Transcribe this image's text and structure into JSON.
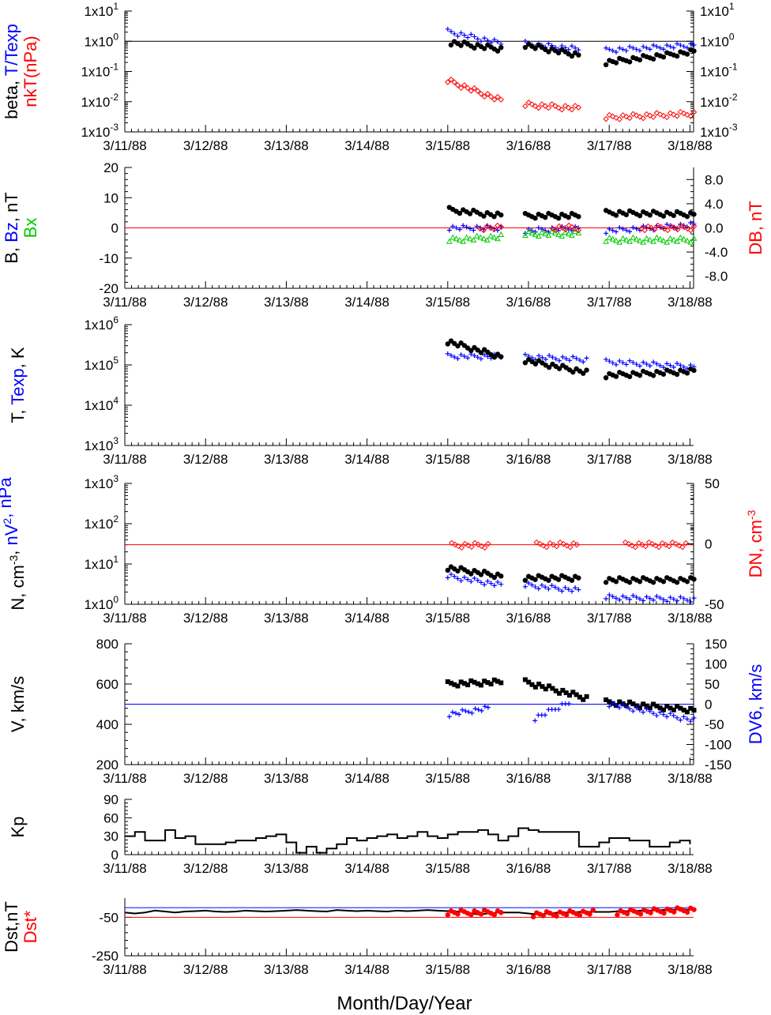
{
  "x_axis": {
    "tick_labels": [
      "3/11/88",
      "3/12/88",
      "3/13/88",
      "3/14/88",
      "3/15/88",
      "3/16/88",
      "3/17/88",
      "3/18/88"
    ],
    "title": "Month/Day/Year"
  },
  "colors": {
    "black": "#000000",
    "blue": "#0000ff",
    "red": "#ff0000",
    "green": "#00cc00"
  },
  "chart_data": [
    {
      "id": "beta",
      "type": "scatter",
      "scale": "log",
      "ylim": [
        0.001,
        10
      ],
      "left_ticks": [
        "1x10",
        "1x10",
        "1x10",
        "1x10",
        "1x10"
      ],
      "left_exps": [
        "1",
        "0",
        "-1",
        "-2",
        "-3"
      ],
      "right_ticks": [
        "1x10",
        "1x10",
        "1x10",
        "1x10",
        "1x10"
      ],
      "right_exps": [
        "1",
        "0",
        "-1",
        "-2",
        "-3"
      ],
      "ylabel_parts": [
        [
          {
            "t": "beta, ",
            "c": "black"
          },
          {
            "t": "T/Texp",
            "c": "blue"
          }
        ],
        [
          {
            "t": "nkT(nPa)",
            "c": "red"
          }
        ]
      ],
      "reference_lines": [
        {
          "y": 1,
          "color": "black"
        }
      ],
      "series": [
        {
          "marker": "plus",
          "color": "blue",
          "segments": [
            [
              4.0,
              4.66,
              2.1,
              0.85
            ],
            [
              4.96,
              5.62,
              0.85,
              0.55
            ],
            [
              5.96,
              7.05,
              0.5,
              0.75
            ]
          ]
        },
        {
          "marker": "dot",
          "color": "black",
          "segments": [
            [
              4.04,
              4.66,
              0.9,
              0.55
            ],
            [
              4.96,
              5.62,
              0.75,
              0.35
            ],
            [
              5.96,
              7.05,
              0.2,
              0.45
            ]
          ]
        },
        {
          "marker": "diamond",
          "color": "red",
          "segments": [
            [
              4.0,
              4.66,
              0.05,
              0.011
            ],
            [
              4.96,
              5.62,
              0.008,
              0.006
            ],
            [
              5.96,
              7.05,
              0.003,
              0.004
            ]
          ]
        }
      ]
    },
    {
      "id": "bfield",
      "type": "scatter",
      "scale": "linear",
      "ylim": [
        -20,
        20
      ],
      "left_ticks": [
        "20",
        "10",
        "0",
        "-10",
        "-20"
      ],
      "right_ticks": [
        "8.0",
        "4.0",
        "0.0",
        "-4.0",
        "-8.0"
      ],
      "right_values": [
        8,
        4,
        0,
        -4,
        -8
      ],
      "right_range": [
        -10,
        10
      ],
      "ylabel_parts": [
        [
          {
            "t": "B, ",
            "c": "black"
          },
          {
            "t": "Bz",
            "c": "blue"
          },
          {
            "t": ", nT",
            "c": "black"
          }
        ],
        [
          {
            "t": "Bx",
            "c": "green"
          }
        ]
      ],
      "right_label": "DB, nT",
      "reference_lines": [
        {
          "y": 0,
          "color": "red"
        }
      ],
      "series": [
        {
          "marker": "dot",
          "color": "black",
          "segments": [
            [
              4.02,
              4.66,
              6,
              4
            ],
            [
              4.96,
              5.62,
              4,
              4
            ],
            [
              5.96,
              7.05,
              5,
              4.5
            ]
          ]
        },
        {
          "marker": "plus",
          "color": "blue",
          "segments": [
            [
              4.02,
              4.66,
              0,
              0
            ],
            [
              4.96,
              5.62,
              -1,
              0
            ],
            [
              5.96,
              7.05,
              -1,
              1
            ]
          ]
        },
        {
          "marker": "tri",
          "color": "green",
          "segments": [
            [
              4.02,
              4.66,
              -4,
              -3
            ],
            [
              4.96,
              5.62,
              -2,
              -2
            ],
            [
              5.96,
              7.05,
              -4,
              -4
            ]
          ]
        },
        {
          "marker": "diamond",
          "color": "red",
          "segments": [
            [
              4.4,
              4.66,
              0,
              0
            ],
            [
              5.3,
              5.62,
              0,
              0
            ],
            [
              6.4,
              7.05,
              0,
              0
            ]
          ]
        }
      ]
    },
    {
      "id": "temperature",
      "type": "scatter",
      "scale": "log",
      "ylim": [
        1000,
        1000000
      ],
      "left_ticks": [
        "1x10",
        "1x10",
        "1x10",
        "1x10"
      ],
      "left_exps": [
        "6",
        "5",
        "4",
        "3"
      ],
      "ylabel_parts": [
        [
          {
            "t": "T, ",
            "c": "black"
          },
          {
            "t": "Texp",
            "c": "blue"
          },
          {
            "t": ", K",
            "c": "black"
          }
        ]
      ],
      "series": [
        {
          "marker": "plus",
          "color": "blue",
          "segments": [
            [
              4.0,
              4.66,
              165000,
              160000
            ],
            [
              4.96,
              5.72,
              160000,
              135000
            ],
            [
              5.96,
              7.05,
              120000,
              90000
            ]
          ]
        },
        {
          "marker": "dot",
          "color": "black",
          "segments": [
            [
              4.0,
              4.66,
              380000,
              160000
            ],
            [
              4.96,
              5.72,
              130000,
              65000
            ],
            [
              5.96,
              7.05,
              55000,
              70000
            ]
          ]
        }
      ]
    },
    {
      "id": "density",
      "type": "scatter",
      "scale": "log",
      "ylim": [
        1,
        1000
      ],
      "left_ticks": [
        "1x10",
        "1x10",
        "1x10",
        "1x10"
      ],
      "left_exps": [
        "3",
        "2",
        "1",
        "0"
      ],
      "right_ticks": [
        "50",
        "0",
        "-50"
      ],
      "right_values": [
        50,
        0,
        -50
      ],
      "right_range": [
        -50,
        50
      ],
      "ylabel_parts": [
        [
          {
            "t": "N, cm",
            "c": "black"
          },
          {
            "t": "-3",
            "c": "black",
            "sup": true
          },
          {
            "t": ", ",
            "c": "black"
          },
          {
            "t": "nV",
            "c": "blue"
          },
          {
            "t": "2",
            "c": "blue",
            "sup": true
          },
          {
            "t": ", nPa",
            "c": "blue"
          }
        ]
      ],
      "right_label": "DN, cm",
      "right_label_sup": "-3",
      "reference_lines": [
        {
          "y": 30,
          "color": "red"
        }
      ],
      "series": [
        {
          "marker": "diamond",
          "color": "red",
          "segments": [
            [
              4.05,
              4.5,
              29,
              29
            ],
            [
              5.1,
              5.6,
              30,
              30
            ],
            [
              6.2,
              6.95,
              30,
              30
            ]
          ]
        },
        {
          "marker": "dot",
          "color": "black",
          "segments": [
            [
              4.0,
              4.66,
              8,
              5
            ],
            [
              4.96,
              5.62,
              4.5,
              4.5
            ],
            [
              5.96,
              7.05,
              4,
              4
            ]
          ]
        },
        {
          "marker": "plus",
          "color": "blue",
          "segments": [
            [
              4.0,
              4.66,
              5,
              3
            ],
            [
              4.96,
              5.62,
              3,
              2.2
            ],
            [
              5.96,
              7.05,
              1.5,
              1.3
            ]
          ]
        }
      ]
    },
    {
      "id": "velocity",
      "type": "scatter",
      "scale": "linear",
      "ylim": [
        200,
        800
      ],
      "left_ticks": [
        "800",
        "600",
        "400",
        "200"
      ],
      "right_ticks": [
        "150",
        "100",
        "50",
        "0",
        "-50",
        "-100",
        "-150"
      ],
      "right_values": [
        150,
        100,
        50,
        0,
        -50,
        -100,
        -150
      ],
      "right_range": [
        -150,
        150
      ],
      "ylabel_parts": [
        [
          {
            "t": "V, km/s",
            "c": "black"
          }
        ]
      ],
      "right_label": "DV6, km/s",
      "reference_lines": [
        {
          "y": 500,
          "color": "blue"
        }
      ],
      "series": [
        {
          "marker": "square",
          "color": "black",
          "segments": [
            [
              4.0,
              4.66,
              600,
              610
            ],
            [
              4.96,
              5.72,
              610,
              530
            ],
            [
              5.96,
              7.05,
              510,
              470
            ]
          ]
        },
        {
          "marker": "plus",
          "color": "blue",
          "segments": [
            [
              4.02,
              4.5,
              450,
              480
            ],
            [
              5.08,
              5.5,
              430,
              510
            ],
            [
              6.0,
              7.05,
              500,
              420
            ]
          ]
        }
      ]
    },
    {
      "id": "kp",
      "type": "line",
      "scale": "linear",
      "ylim": [
        0,
        90
      ],
      "left_ticks": [
        "90",
        "60",
        "30",
        "0"
      ],
      "ylabel_parts": [
        [
          {
            "t": "Kp",
            "c": "black"
          }
        ]
      ],
      "series": [
        {
          "color": "black",
          "x": [
            0,
            0.125,
            0.25,
            0.375,
            0.5,
            0.625,
            0.75,
            0.875,
            1.0,
            1.125,
            1.25,
            1.375,
            1.5,
            1.625,
            1.75,
            1.875,
            2.0,
            2.125,
            2.25,
            2.375,
            2.5,
            2.625,
            2.75,
            2.875,
            3.0,
            3.125,
            3.25,
            3.375,
            3.5,
            3.625,
            3.75,
            3.875,
            4.0,
            4.125,
            4.25,
            4.375,
            4.5,
            4.625,
            4.75,
            4.875,
            5.0,
            5.125,
            5.25,
            5.375,
            5.5,
            5.625,
            5.75,
            5.875,
            6.0,
            6.125,
            6.25,
            6.375,
            6.5,
            6.625,
            6.75,
            6.875,
            7.0
          ],
          "y": [
            30,
            37,
            23,
            23,
            40,
            27,
            30,
            17,
            17,
            17,
            20,
            23,
            23,
            27,
            30,
            33,
            20,
            3,
            13,
            3,
            10,
            17,
            27,
            23,
            27,
            30,
            33,
            27,
            30,
            37,
            30,
            27,
            33,
            37,
            37,
            40,
            33,
            23,
            30,
            43,
            40,
            37,
            37,
            37,
            37,
            13,
            13,
            20,
            27,
            27,
            23,
            23,
            13,
            13,
            20,
            23,
            17
          ]
        }
      ]
    },
    {
      "id": "dst",
      "type": "line",
      "scale": "linear",
      "ylim": [
        -250,
        50
      ],
      "left_ticks": [
        "-50",
        "-250"
      ],
      "left_values": [
        -50,
        -250
      ],
      "ylabel_parts": [
        [
          {
            "t": "Dst,nT",
            "c": "black"
          }
        ],
        [
          {
            "t": "Dst*",
            "c": "red"
          }
        ]
      ],
      "reference_lines": [
        {
          "y": 0,
          "color": "blue"
        },
        {
          "y": -50,
          "color": "red"
        }
      ],
      "series": [
        {
          "color": "black",
          "x": [
            0,
            0.125,
            0.25,
            0.375,
            0.5,
            0.625,
            0.75,
            0.875,
            1.0,
            1.125,
            1.25,
            1.375,
            1.5,
            1.625,
            1.75,
            1.875,
            2.0,
            2.125,
            2.25,
            2.375,
            2.5,
            2.625,
            2.75,
            2.875,
            3.0,
            3.125,
            3.25,
            3.375,
            3.5,
            3.625,
            3.75,
            3.875,
            4.0,
            4.125,
            4.25,
            4.375,
            4.5,
            4.625,
            4.75,
            4.875,
            5.0,
            5.125,
            5.25,
            5.375,
            5.5,
            5.625,
            5.75,
            5.875,
            6.0,
            6.125,
            6.25,
            6.375,
            6.5,
            6.625,
            6.75,
            6.875,
            7.0
          ],
          "y": [
            -25,
            -30,
            -25,
            -15,
            -20,
            -25,
            -20,
            -18,
            -15,
            -20,
            -22,
            -20,
            -15,
            -18,
            -20,
            -18,
            -15,
            -12,
            -15,
            -18,
            -20,
            -12,
            -15,
            -18,
            -15,
            -18,
            -20,
            -15,
            -18,
            -15,
            -12,
            -15,
            -18,
            -20,
            -25,
            -35,
            -30,
            -25,
            -25,
            -25,
            -30,
            -35,
            -30,
            -25,
            -25,
            -22,
            -22,
            -22,
            -22,
            -18,
            -18,
            -15,
            -15,
            -12,
            -10,
            -10,
            -10
          ]
        },
        {
          "color": "red",
          "marker": "dot",
          "segments": [
            [
              4.0,
              4.66,
              -25,
              -25
            ],
            [
              5.06,
              5.8,
              -35,
              -25
            ],
            [
              6.1,
              7.05,
              -25,
              -10
            ]
          ]
        }
      ]
    }
  ]
}
